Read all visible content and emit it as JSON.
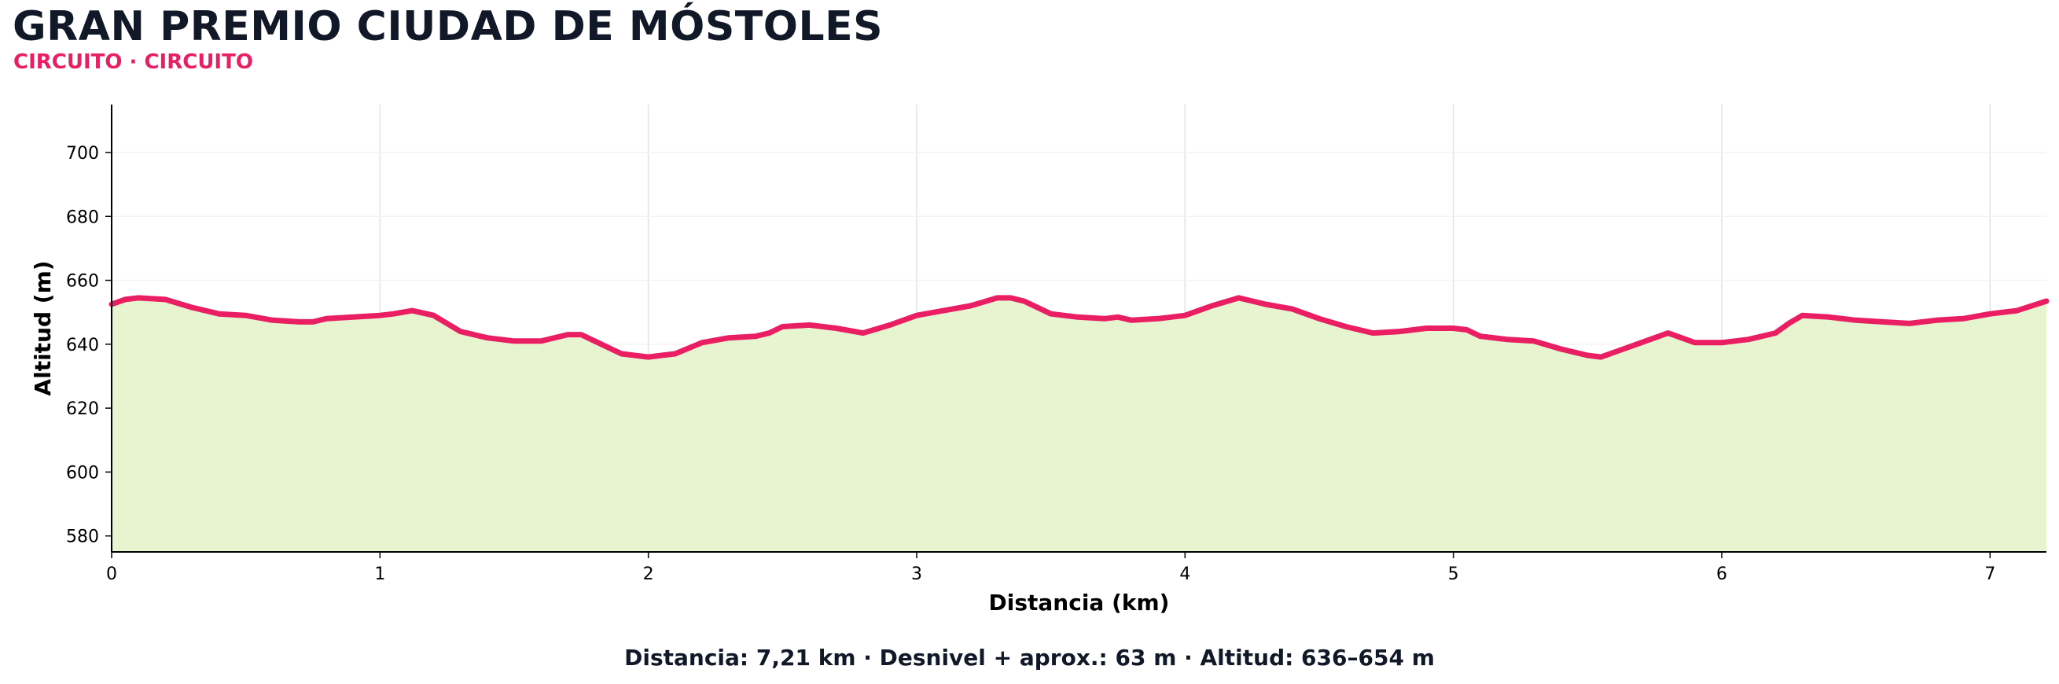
{
  "title": "GRAN PREMIO CIUDAD DE MÓSTOLES",
  "subtitle": "CIRCUITO · CIRCUITO",
  "footer": "Distancia: 7,21 km · Desnivel + aprox.: 63 m · Altitud: 636–654 m",
  "colors": {
    "line": "#e91e63",
    "fill": "#e6f5d0",
    "title": "#111827",
    "grid": "#e3e3e3"
  },
  "chart_data": {
    "type": "area",
    "xlabel": "Distancia (km)",
    "ylabel": "Altitud (m)",
    "xlim": [
      0,
      7.21
    ],
    "ylim": [
      575,
      715
    ],
    "xticks": [
      0,
      1,
      2,
      3,
      4,
      5,
      6,
      7
    ],
    "yticks": [
      580,
      600,
      620,
      640,
      660,
      680,
      700
    ],
    "grid": "x",
    "x": [
      0,
      0.05,
      0.1,
      0.2,
      0.3,
      0.35,
      0.4,
      0.5,
      0.6,
      0.7,
      0.75,
      0.8,
      0.9,
      1.0,
      1.05,
      1.12,
      1.2,
      1.3,
      1.4,
      1.5,
      1.6,
      1.7,
      1.75,
      1.8,
      1.9,
      2.0,
      2.05,
      2.1,
      2.2,
      2.3,
      2.4,
      2.45,
      2.5,
      2.6,
      2.7,
      2.8,
      2.9,
      3.0,
      3.1,
      3.2,
      3.3,
      3.35,
      3.4,
      3.5,
      3.6,
      3.7,
      3.75,
      3.8,
      3.9,
      4.0,
      4.1,
      4.2,
      4.3,
      4.4,
      4.5,
      4.6,
      4.7,
      4.8,
      4.9,
      5.0,
      5.05,
      5.1,
      5.2,
      5.3,
      5.4,
      5.5,
      5.55,
      5.6,
      5.7,
      5.8,
      5.9,
      6.0,
      6.1,
      6.2,
      6.25,
      6.3,
      6.4,
      6.5,
      6.6,
      6.7,
      6.8,
      6.9,
      7.0,
      7.1,
      7.21
    ],
    "y": [
      652.5,
      654,
      654.5,
      654,
      651.5,
      650.5,
      649.5,
      649,
      647.5,
      647,
      647,
      648,
      648.5,
      649,
      649.5,
      650.5,
      649,
      644,
      642,
      641,
      641,
      643,
      643,
      641,
      637,
      636,
      636.5,
      637,
      640.5,
      642,
      642.5,
      643.5,
      645.5,
      646,
      645,
      643.5,
      646,
      649,
      650.5,
      652,
      654.5,
      654.5,
      653.5,
      649.5,
      648.5,
      648,
      648.5,
      647.5,
      648,
      649,
      652,
      654.5,
      652.5,
      651,
      648,
      645.5,
      643.5,
      644,
      645,
      645,
      644.5,
      642.5,
      641.5,
      641,
      638.5,
      636.5,
      636,
      637.5,
      640.5,
      643.5,
      640.5,
      640.5,
      641.5,
      643.5,
      646.5,
      649,
      648.5,
      647.5,
      647,
      646.5,
      647.5,
      648,
      649.5,
      650.5,
      653.5
    ]
  }
}
